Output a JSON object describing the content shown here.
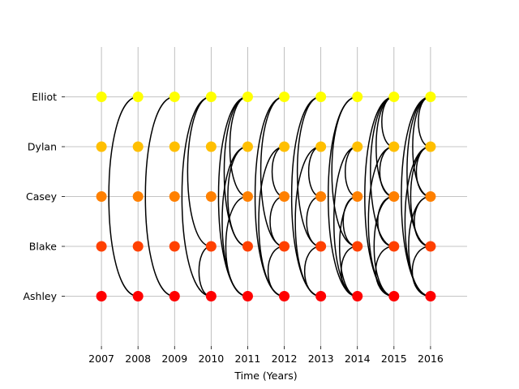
{
  "chart_data": {
    "type": "scatter",
    "title": "",
    "xlabel": "Time (Years)",
    "ylabel": "",
    "x": [
      2007,
      2008,
      2009,
      2010,
      2011,
      2012,
      2013,
      2014,
      2015,
      2016
    ],
    "x_tick_labels": [
      "2007",
      "2008",
      "2009",
      "2010",
      "2011",
      "2012",
      "2013",
      "2014",
      "2015",
      "2016"
    ],
    "categories": [
      "Ashley",
      "Blake",
      "Casey",
      "Dylan",
      "Elliot"
    ],
    "category_colors": [
      "#ff0000",
      "#ff4000",
      "#ff8000",
      "#ffbf00",
      "#ffff00"
    ],
    "xlim": [
      2006,
      2017
    ],
    "ylim": [
      -1,
      5
    ],
    "grid": true,
    "legend": "none",
    "arcs_by_year": [
      {
        "year": 2007,
        "links": []
      },
      {
        "year": 2008,
        "links": [
          [
            "Ashley",
            "Elliot"
          ]
        ]
      },
      {
        "year": 2009,
        "links": [
          [
            "Ashley",
            "Elliot"
          ]
        ]
      },
      {
        "year": 2010,
        "links": [
          [
            "Ashley",
            "Elliot"
          ],
          [
            "Blake",
            "Elliot"
          ],
          [
            "Ashley",
            "Blake"
          ]
        ]
      },
      {
        "year": 2011,
        "links": [
          [
            "Ashley",
            "Elliot"
          ],
          [
            "Blake",
            "Elliot"
          ],
          [
            "Ashley",
            "Dylan"
          ],
          [
            "Casey",
            "Elliot"
          ],
          [
            "Blake",
            "Dylan"
          ],
          [
            "Ashley",
            "Casey"
          ]
        ]
      },
      {
        "year": 2012,
        "links": [
          [
            "Ashley",
            "Elliot"
          ],
          [
            "Blake",
            "Elliot"
          ],
          [
            "Ashley",
            "Dylan"
          ],
          [
            "Casey",
            "Dylan"
          ],
          [
            "Blake",
            "Casey"
          ],
          [
            "Ashley",
            "Blake"
          ]
        ]
      },
      {
        "year": 2013,
        "links": [
          [
            "Ashley",
            "Elliot"
          ],
          [
            "Blake",
            "Elliot"
          ],
          [
            "Ashley",
            "Dylan"
          ],
          [
            "Casey",
            "Dylan"
          ],
          [
            "Blake",
            "Casey"
          ],
          [
            "Ashley",
            "Blake"
          ]
        ]
      },
      {
        "year": 2014,
        "links": [
          [
            "Ashley",
            "Elliot"
          ],
          [
            "Ashley",
            "Dylan"
          ],
          [
            "Blake",
            "Elliot"
          ],
          [
            "Ashley",
            "Casey"
          ],
          [
            "Casey",
            "Dylan"
          ],
          [
            "Blake",
            "Casey"
          ],
          [
            "Ashley",
            "Blake"
          ]
        ]
      },
      {
        "year": 2015,
        "links": [
          [
            "Ashley",
            "Elliot"
          ],
          [
            "Blake",
            "Elliot"
          ],
          [
            "Ashley",
            "Dylan"
          ],
          [
            "Casey",
            "Elliot"
          ],
          [
            "Dylan",
            "Elliot"
          ],
          [
            "Ashley",
            "Casey"
          ],
          [
            "Casey",
            "Dylan"
          ],
          [
            "Blake",
            "Casey"
          ],
          [
            "Ashley",
            "Blake"
          ]
        ]
      },
      {
        "year": 2016,
        "links": [
          [
            "Ashley",
            "Elliot"
          ],
          [
            "Blake",
            "Elliot"
          ],
          [
            "Ashley",
            "Dylan"
          ],
          [
            "Casey",
            "Elliot"
          ],
          [
            "Dylan",
            "Elliot"
          ],
          [
            "Blake",
            "Dylan"
          ],
          [
            "Ashley",
            "Casey"
          ],
          [
            "Casey",
            "Dylan"
          ],
          [
            "Blake",
            "Casey"
          ],
          [
            "Ashley",
            "Blake"
          ]
        ]
      }
    ]
  }
}
